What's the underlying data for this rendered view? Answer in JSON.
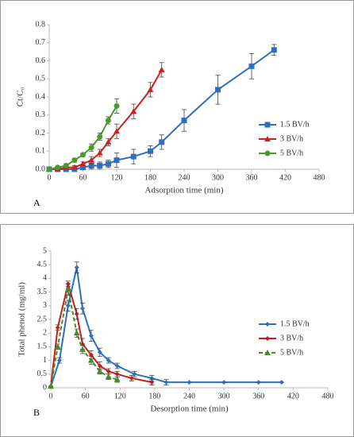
{
  "chart_data": [
    {
      "type": "line",
      "label": "A",
      "xlabel": "Adsorption time (min)",
      "ylabel": "Ct/C₀",
      "xlim": [
        0,
        480
      ],
      "xticks": [
        0,
        60,
        120,
        180,
        240,
        300,
        360,
        420,
        480
      ],
      "ylim": [
        0,
        0.8
      ],
      "yticks": [
        {
          "value": 0,
          "label": "0.0"
        },
        0.1,
        0.2,
        0.3,
        0.4,
        0.5,
        0.6,
        0.7,
        0.8
      ],
      "legend": "right",
      "series": [
        {
          "name": "1.5 BV/h",
          "color": "#2e6fc0",
          "marker": "square",
          "dashed": false,
          "x": [
            0,
            15,
            30,
            45,
            60,
            75,
            90,
            105,
            120,
            150,
            180,
            200,
            240,
            300,
            360,
            400
          ],
          "values": [
            0,
            0,
            0,
            0,
            0.01,
            0.02,
            0.02,
            0.03,
            0.05,
            0.07,
            0.1,
            0.15,
            0.27,
            0.44,
            0.57,
            0.66
          ],
          "errors": [
            0,
            0,
            0,
            0,
            0.01,
            0.02,
            0.02,
            0.02,
            0.04,
            0.04,
            0.03,
            0.04,
            0.06,
            0.08,
            0.07,
            0.03
          ]
        },
        {
          "name": "3 BV/h",
          "color": "#d0201c",
          "marker": "triangle",
          "dashed": false,
          "x": [
            0,
            15,
            30,
            45,
            60,
            75,
            90,
            105,
            120,
            150,
            180,
            200
          ],
          "values": [
            0,
            0,
            0.01,
            0.01,
            0.03,
            0.05,
            0.09,
            0.15,
            0.21,
            0.32,
            0.44,
            0.55
          ],
          "errors": [
            0,
            0,
            0,
            0.01,
            0.01,
            0.02,
            0.02,
            0.02,
            0.04,
            0.04,
            0.04,
            0.04
          ]
        },
        {
          "name": "5 BV/h",
          "color": "#4a9a2c",
          "marker": "circle",
          "dashed": false,
          "x": [
            0,
            15,
            30,
            45,
            60,
            75,
            90,
            105,
            120
          ],
          "values": [
            0,
            0.01,
            0.02,
            0.05,
            0.08,
            0.12,
            0.18,
            0.27,
            0.35
          ],
          "errors": [
            0,
            0,
            0.01,
            0.01,
            0.01,
            0.02,
            0.02,
            0.02,
            0.04
          ]
        }
      ]
    },
    {
      "type": "line",
      "label": "B",
      "xlabel": "Desorption time (min)",
      "ylabel": "Total phenol (mg/ml)",
      "xlim": [
        0,
        480
      ],
      "xticks": [
        0,
        60,
        120,
        180,
        240,
        300,
        360,
        420,
        480
      ],
      "ylim": [
        0,
        5
      ],
      "yticks": [
        0,
        0.5,
        1,
        1.5,
        2,
        2.5,
        3,
        3.5,
        4,
        4.5,
        5
      ],
      "legend": "right",
      "series": [
        {
          "name": "1.5 BV/h",
          "color": "#2e6fc0",
          "marker": "diamond",
          "dashed": false,
          "x": [
            0,
            15,
            30,
            45,
            55,
            70,
            85,
            100,
            115,
            145,
            175,
            200,
            240,
            300,
            360,
            400
          ],
          "values": [
            0.05,
            1.0,
            3.0,
            4.4,
            2.9,
            1.9,
            1.3,
            1.0,
            0.8,
            0.5,
            0.35,
            0.2,
            0.2,
            0.2,
            0.2,
            0.2
          ],
          "errors": [
            0,
            0.1,
            0.2,
            0.2,
            0.2,
            0.2,
            0.15,
            0.1,
            0.1,
            0.1,
            0.1,
            0.1,
            0,
            0,
            0,
            0
          ]
        },
        {
          "name": "3 BV/h",
          "color": "#c0201c",
          "marker": "diamond",
          "dashed": false,
          "x": [
            0,
            12,
            30,
            45,
            55,
            70,
            85,
            100,
            115,
            140,
            175
          ],
          "values": [
            0.05,
            2.2,
            3.8,
            2.7,
            1.6,
            1.2,
            0.8,
            0.6,
            0.5,
            0.35,
            0.2
          ],
          "errors": [
            0,
            0.1,
            0.1,
            0.2,
            0.2,
            0.15,
            0.15,
            0.1,
            0.1,
            0.1,
            0.1
          ]
        },
        {
          "name": "5 BV/h",
          "color": "#4a8a2c",
          "marker": "triangle",
          "dashed": true,
          "x": [
            0,
            12,
            30,
            45,
            55,
            70,
            85,
            100,
            115
          ],
          "values": [
            0.05,
            1.5,
            3.6,
            2.0,
            1.4,
            1.0,
            0.6,
            0.4,
            0.3
          ],
          "errors": [
            0,
            0.1,
            0.2,
            0.15,
            0.15,
            0.15,
            0.1,
            0.1,
            0.1
          ]
        }
      ]
    }
  ]
}
